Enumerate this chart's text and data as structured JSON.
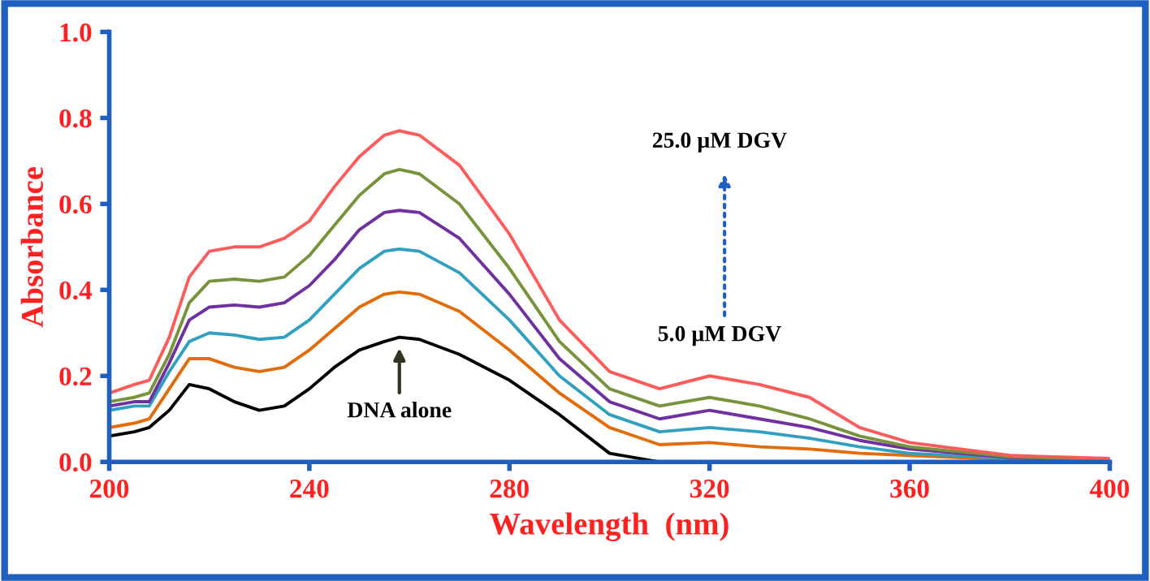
{
  "chart_data": {
    "type": "line",
    "xlabel": "Wavelength  (nm)",
    "ylabel": "Absorbance",
    "xlim": [
      200,
      400
    ],
    "xticks": [
      200,
      240,
      280,
      320,
      360,
      400
    ],
    "ylim": [
      0,
      1.0
    ],
    "yticks": [
      {
        "value": 0,
        "label": "0.0"
      },
      0.2,
      0.4,
      0.6,
      0.8,
      {
        "value": 1.0,
        "label": "1.0"
      }
    ],
    "grid": false,
    "legend": false,
    "marker": "none",
    "line_style": "solid",
    "x": [
      200,
      205,
      208,
      212,
      216,
      220,
      225,
      230,
      235,
      240,
      245,
      250,
      255,
      258,
      262,
      270,
      280,
      290,
      300,
      310,
      320,
      330,
      340,
      350,
      360,
      380,
      400
    ],
    "series": [
      {
        "color": "#000000",
        "values": [
          0.06,
          0.07,
          0.08,
          0.12,
          0.18,
          0.17,
          0.14,
          0.12,
          0.13,
          0.17,
          0.22,
          0.26,
          0.28,
          0.29,
          0.285,
          0.25,
          0.19,
          0.11,
          0.02,
          0.0,
          null,
          null,
          null,
          null,
          null,
          null,
          null
        ]
      },
      {
        "color": "#e36c0a",
        "values": [
          0.08,
          0.09,
          0.1,
          0.17,
          0.24,
          0.24,
          0.22,
          0.21,
          0.22,
          0.26,
          0.31,
          0.36,
          0.39,
          0.395,
          0.39,
          0.35,
          0.26,
          0.16,
          0.08,
          0.04,
          0.045,
          0.035,
          0.03,
          0.02,
          0.015,
          0.005,
          0.0
        ]
      },
      {
        "color": "#31a0c0",
        "values": [
          0.12,
          0.13,
          0.13,
          0.21,
          0.28,
          0.3,
          0.295,
          0.285,
          0.29,
          0.33,
          0.39,
          0.45,
          0.49,
          0.495,
          0.49,
          0.44,
          0.33,
          0.2,
          0.11,
          0.07,
          0.08,
          0.07,
          0.055,
          0.035,
          0.02,
          0.008,
          0.005
        ]
      },
      {
        "color": "#7030a0",
        "values": [
          0.13,
          0.14,
          0.14,
          0.23,
          0.33,
          0.36,
          0.365,
          0.36,
          0.37,
          0.41,
          0.47,
          0.54,
          0.58,
          0.585,
          0.58,
          0.52,
          0.39,
          0.24,
          0.14,
          0.1,
          0.12,
          0.1,
          0.08,
          0.05,
          0.03,
          0.01,
          0.005
        ]
      },
      {
        "color": "#77933c",
        "values": [
          0.14,
          0.15,
          0.16,
          0.25,
          0.37,
          0.42,
          0.425,
          0.42,
          0.43,
          0.48,
          0.55,
          0.62,
          0.67,
          0.68,
          0.67,
          0.6,
          0.45,
          0.28,
          0.17,
          0.13,
          0.15,
          0.13,
          0.1,
          0.06,
          0.035,
          0.012,
          0.005
        ]
      },
      {
        "color": "#ff5b5b",
        "values": [
          0.16,
          0.18,
          0.19,
          0.29,
          0.43,
          0.49,
          0.5,
          0.5,
          0.52,
          0.56,
          0.64,
          0.71,
          0.76,
          0.77,
          0.76,
          0.69,
          0.53,
          0.33,
          0.21,
          0.17,
          0.2,
          0.18,
          0.15,
          0.08,
          0.045,
          0.015,
          0.008
        ]
      }
    ],
    "annotations": [
      "25.0 µM DGV",
      "5.0 µM DGV",
      {
        "text": "DNA alone",
        "x": 258,
        "y": 0.29
      }
    ]
  }
}
